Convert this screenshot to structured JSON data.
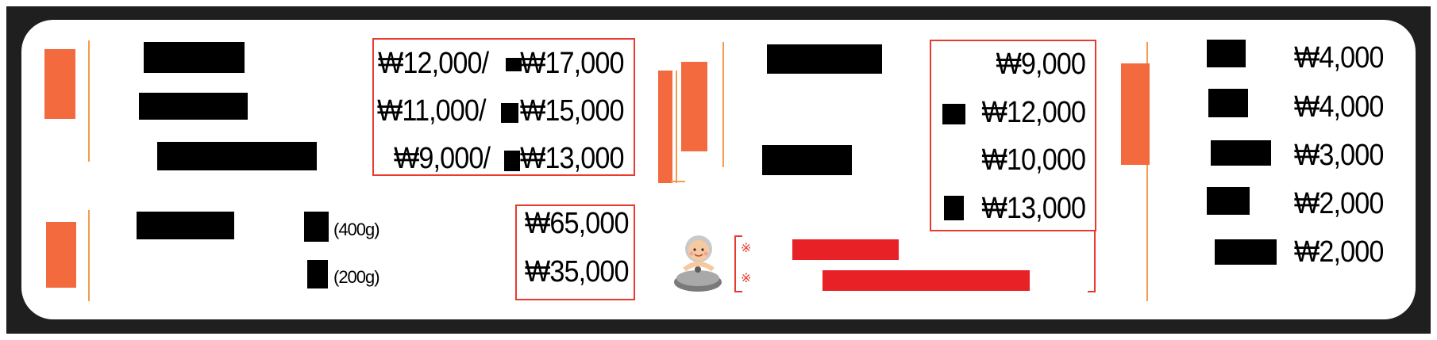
{
  "colors": {
    "accent_orange": "#f26a3d",
    "divider_orange": "#f59a4e",
    "box_red": "#e63b2e",
    "bar_red": "#e82127",
    "frame_dark": "#1f1f1f"
  },
  "icons": {
    "mascot": "cook-with-pot-icon"
  },
  "left_menu": {
    "prices": [
      {
        "single": "₩12,000/",
        "large": "₩17,000"
      },
      {
        "single": "₩11,000/",
        "large": "₩15,000"
      },
      {
        "single": "₩9,000/",
        "large": "₩13,000"
      }
    ]
  },
  "weight_menu": {
    "items": [
      {
        "weight": "(400g)",
        "price": "₩65,000"
      },
      {
        "weight": "(200g)",
        "price": "₩35,000"
      }
    ]
  },
  "middle_menu": {
    "prices": [
      "₩9,000",
      "₩12,000",
      "₩10,000",
      "₩13,000"
    ],
    "notes": [
      "※",
      "※"
    ]
  },
  "right_menu": {
    "prices": [
      "₩4,000",
      "₩4,000",
      "₩3,000",
      "₩2,000",
      "₩2,000"
    ]
  }
}
